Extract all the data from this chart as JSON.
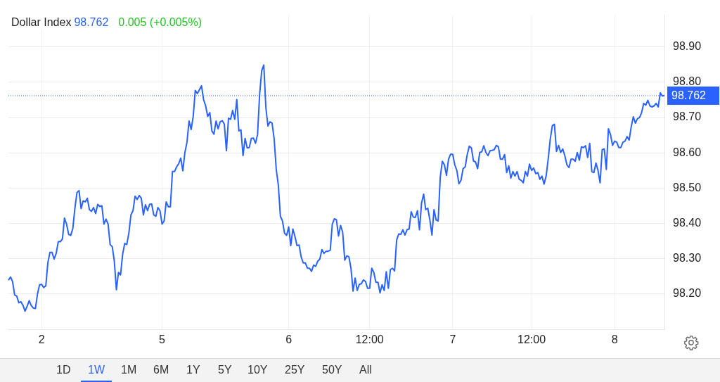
{
  "chart_data": {
    "type": "line",
    "title": "Dollar Index",
    "annotations": [
      "98.762",
      "0.005 (+0.005%)",
      "1D",
      "1W",
      "1M",
      "6M",
      "1Y",
      "5Y",
      "10Y",
      "25Y",
      "50Y",
      "All"
    ],
    "categories": [
      null,
      null,
      null,
      null,
      null,
      null,
      null,
      null,
      null,
      null,
      null,
      null,
      null,
      null,
      null,
      null,
      "2",
      null,
      null,
      null,
      null,
      null,
      null,
      null,
      null,
      null,
      null,
      null,
      null,
      null,
      null,
      null,
      null,
      null,
      null,
      null,
      null,
      null,
      null,
      null,
      null,
      null,
      null,
      null,
      null,
      null,
      null,
      null,
      null,
      null,
      null,
      null,
      null,
      null,
      null,
      null,
      null,
      null,
      null,
      null,
      null,
      null,
      null,
      null,
      null,
      null,
      null,
      null,
      null,
      null,
      null,
      null,
      null,
      null,
      "5",
      null,
      null,
      null,
      null,
      null,
      null,
      null,
      null,
      null,
      null,
      null,
      null,
      null,
      null,
      null,
      null,
      null,
      null,
      null,
      null,
      null,
      null,
      null,
      null,
      null,
      null,
      null,
      null,
      null,
      null,
      null,
      null,
      null,
      null,
      null,
      null,
      null,
      null,
      null,
      null,
      null,
      null,
      null,
      null,
      null,
      null,
      null,
      null,
      null,
      null,
      null,
      null,
      null,
      null,
      null,
      null,
      null,
      null,
      null,
      null,
      "6",
      null,
      null,
      null,
      null,
      null,
      null,
      null,
      null,
      null,
      null,
      null,
      null,
      null,
      null,
      null,
      null,
      null,
      null,
      null,
      null,
      null,
      null,
      null,
      null,
      null,
      null,
      null,
      null,
      null,
      null,
      null,
      null,
      null,
      null,
      null,
      null,
      null,
      null,
      "12:00",
      null,
      null,
      null,
      null,
      null,
      null,
      null,
      null,
      null,
      null,
      null,
      null,
      null,
      null,
      null,
      null,
      null,
      null,
      null,
      null,
      null,
      null,
      null,
      null,
      null,
      null,
      null,
      null,
      null,
      null,
      null,
      null,
      null,
      null,
      null,
      null,
      null,
      null,
      null,
      "7",
      null,
      null,
      null,
      null,
      null,
      null,
      null,
      null,
      null,
      null,
      null,
      null,
      null,
      null,
      null,
      null,
      null,
      null,
      null,
      null,
      null,
      null,
      null,
      null,
      null,
      null,
      null,
      null,
      null,
      null,
      null,
      null,
      null,
      null,
      null,
      null,
      null,
      "12:00",
      null,
      null,
      null,
      null,
      null,
      null,
      null,
      null,
      null,
      null,
      null,
      null,
      null,
      null,
      null,
      null,
      null,
      null,
      null,
      null,
      null,
      null,
      null,
      null,
      null,
      null,
      null,
      null,
      null,
      null,
      null,
      null,
      null,
      null,
      null,
      null,
      null,
      null,
      null,
      "8",
      null,
      null,
      null,
      null,
      null,
      null,
      null,
      null,
      null,
      null,
      null,
      null,
      null,
      null,
      null,
      null,
      null,
      null,
      null,
      null,
      null,
      null,
      null,
      null
    ],
    "ylim": [
      98.1,
      98.99
    ],
    "yticks": [
      {
        "value": 98.2,
        "label": "98.20"
      },
      {
        "value": 98.3,
        "label": "98.30"
      },
      {
        "value": 98.4,
        "label": "98.40"
      },
      {
        "value": 98.5,
        "label": "98.50"
      },
      {
        "value": 98.6,
        "label": "98.60"
      },
      {
        "value": 98.7,
        "label": "98.70"
      },
      {
        "value": 98.8,
        "label": "98.80"
      },
      {
        "value": 98.9,
        "label": "98.90"
      }
    ],
    "grid": true,
    "legend": false,
    "marker": "none",
    "line_style": "solid",
    "ref_lines": [
      {
        "axis": "y",
        "value": 98.762,
        "label": "98.762",
        "color": "#2962ff",
        "line_style": "dotted"
      }
    ],
    "series": [
      {
        "color": "#2962ff",
        "values": [
          98.239,
          98.248,
          98.235,
          98.197,
          98.194,
          98.175,
          98.178,
          98.168,
          98.151,
          98.165,
          98.181,
          98.167,
          98.16,
          98.159,
          98.2,
          98.226,
          98.227,
          98.218,
          98.223,
          98.289,
          98.318,
          98.318,
          98.299,
          98.315,
          98.348,
          98.348,
          98.356,
          98.415,
          98.398,
          98.369,
          98.366,
          98.385,
          98.442,
          98.487,
          98.493,
          98.442,
          98.464,
          98.461,
          98.471,
          98.439,
          98.434,
          98.445,
          98.428,
          98.454,
          98.448,
          98.45,
          98.398,
          98.412,
          98.398,
          98.34,
          98.334,
          98.293,
          98.212,
          98.261,
          98.254,
          98.312,
          98.343,
          98.34,
          98.372,
          98.424,
          98.436,
          98.477,
          98.468,
          98.479,
          98.471,
          98.424,
          98.453,
          98.436,
          98.454,
          98.455,
          98.424,
          98.42,
          98.445,
          98.436,
          98.398,
          98.407,
          98.461,
          98.447,
          98.447,
          98.547,
          98.547,
          98.56,
          98.569,
          98.585,
          98.549,
          98.601,
          98.63,
          98.69,
          98.666,
          98.703,
          98.777,
          98.768,
          98.779,
          98.79,
          98.751,
          98.733,
          98.703,
          98.714,
          98.662,
          98.653,
          98.69,
          98.668,
          98.688,
          98.691,
          98.681,
          98.606,
          98.698,
          98.695,
          98.72,
          98.695,
          98.751,
          98.662,
          98.665,
          98.592,
          98.641,
          98.614,
          98.615,
          98.641,
          98.642,
          98.627,
          98.652,
          98.766,
          98.833,
          98.849,
          98.728,
          98.676,
          98.688,
          98.684,
          98.639,
          98.553,
          98.509,
          98.42,
          98.407,
          98.372,
          98.366,
          98.39,
          98.337,
          98.384,
          98.363,
          98.337,
          98.339,
          98.305,
          98.288,
          98.288,
          98.273,
          98.273,
          98.264,
          98.282,
          98.278,
          98.293,
          98.299,
          98.326,
          98.315,
          98.321,
          98.321,
          98.324,
          98.398,
          98.413,
          98.41,
          98.364,
          98.394,
          98.375,
          98.296,
          98.308,
          98.305,
          98.273,
          98.208,
          98.245,
          98.21,
          98.227,
          98.229,
          98.24,
          98.235,
          98.216,
          98.216,
          98.273,
          98.261,
          98.233,
          98.233,
          98.203,
          98.226,
          98.21,
          98.263,
          98.216,
          98.269,
          98.273,
          98.265,
          98.353,
          98.37,
          98.369,
          98.382,
          98.367,
          98.382,
          98.384,
          98.433,
          98.418,
          98.417,
          98.436,
          98.382,
          98.458,
          98.483,
          98.439,
          98.443,
          98.41,
          98.367,
          98.439,
          98.41,
          98.407,
          98.531,
          98.576,
          98.566,
          98.536,
          98.582,
          98.596,
          98.596,
          98.566,
          98.55,
          98.512,
          98.522,
          98.555,
          98.56,
          98.595,
          98.619,
          98.614,
          98.577,
          98.574,
          98.555,
          98.601,
          98.603,
          98.62,
          98.601,
          98.592,
          98.606,
          98.607,
          98.609,
          98.621,
          98.617,
          98.582,
          98.582,
          98.595,
          98.544,
          98.563,
          98.528,
          98.547,
          98.534,
          98.547,
          98.525,
          98.522,
          98.515,
          98.547,
          98.534,
          98.568,
          98.55,
          98.557,
          98.541,
          98.544,
          98.525,
          98.534,
          98.511,
          98.534,
          98.582,
          98.639,
          98.677,
          98.681,
          98.604,
          98.621,
          98.601,
          98.611,
          98.592,
          98.566,
          98.558,
          98.582,
          98.582,
          98.576,
          98.601,
          98.579,
          98.617,
          98.615,
          98.62,
          98.587,
          98.627,
          98.547,
          98.544,
          98.571,
          98.55,
          98.515,
          98.609,
          98.611,
          98.553,
          98.668,
          98.652,
          98.621,
          98.633,
          98.63,
          98.615,
          98.615,
          98.63,
          98.633,
          98.646,
          98.636,
          98.674,
          98.702,
          98.684,
          98.697,
          98.7,
          98.714,
          98.74,
          98.735,
          98.749,
          98.733,
          98.73,
          98.733,
          98.74,
          98.73,
          98.77,
          98.761,
          98.763
        ]
      }
    ]
  }
}
